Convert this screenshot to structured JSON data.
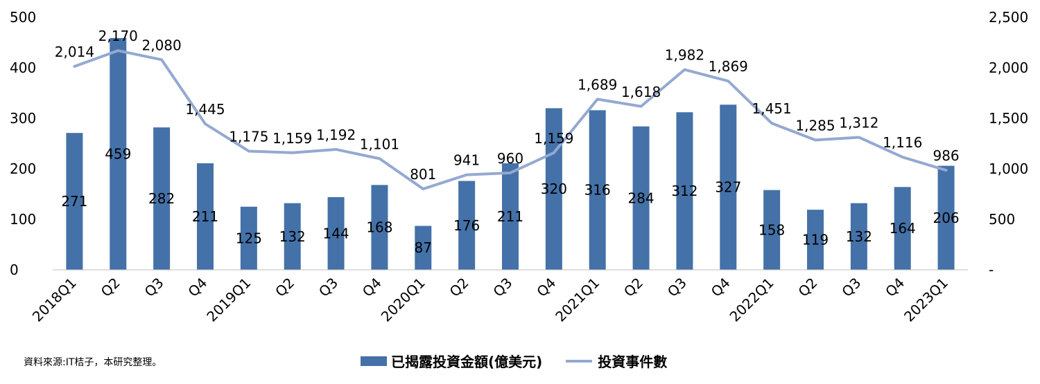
{
  "chart_data": {
    "type": "bar+line",
    "categories": [
      "2018Q1",
      "Q2",
      "Q3",
      "Q4",
      "2019Q1",
      "Q2",
      "Q3",
      "Q4",
      "2020Q1",
      "Q2",
      "Q3",
      "Q4",
      "2021Q1",
      "Q2",
      "Q3",
      "Q4",
      "2022Q1",
      "Q2",
      "Q3",
      "Q4",
      "2023Q1"
    ],
    "series": [
      {
        "name": "已揭露投資金額(億美元)",
        "type": "bar",
        "axis": "left",
        "color": "#4471a8",
        "values": [
          271,
          459,
          282,
          211,
          125,
          132,
          144,
          168,
          87,
          176,
          211,
          320,
          316,
          284,
          312,
          327,
          158,
          119,
          132,
          164,
          206
        ],
        "labels": [
          "271",
          "459",
          "282",
          "211",
          "125",
          "132",
          "144",
          "168",
          "87",
          "176",
          "211",
          "320",
          "316",
          "284",
          "312",
          "327",
          "158",
          "119",
          "132",
          "164",
          "206"
        ]
      },
      {
        "name": "投資事件數",
        "type": "line",
        "axis": "right",
        "color": "#94a9d1",
        "values": [
          2014,
          2170,
          2080,
          1445,
          1175,
          1159,
          1192,
          1101,
          801,
          941,
          960,
          1159,
          1689,
          1618,
          1982,
          1869,
          1451,
          1285,
          1312,
          1116,
          986
        ],
        "labels": [
          "2,014",
          "2,170",
          "2,080",
          "1,445",
          "1,175",
          "1,159",
          "1,192",
          "1,101",
          "801",
          "941",
          "960",
          "1,159",
          "1,689",
          "1,618",
          "1,982",
          "1,869",
          "1,451",
          "1,285",
          "1,312",
          "1,116",
          "986"
        ]
      }
    ],
    "y_left": {
      "min": 0,
      "max": 500,
      "ticks": [
        "0",
        "100",
        "200",
        "300",
        "400",
        "500"
      ]
    },
    "y_right": {
      "min": 0,
      "max": 2500,
      "ticks": [
        "-",
        "500",
        "1,000",
        "1,500",
        "2,000",
        "2,500"
      ]
    },
    "grid": false,
    "legend_position": "bottom"
  },
  "source_note": "資料來源:IT桔子，本研究整理。",
  "legend": {
    "bar_label": "已揭露投資金額(億美元)",
    "line_label": "投資事件數"
  }
}
